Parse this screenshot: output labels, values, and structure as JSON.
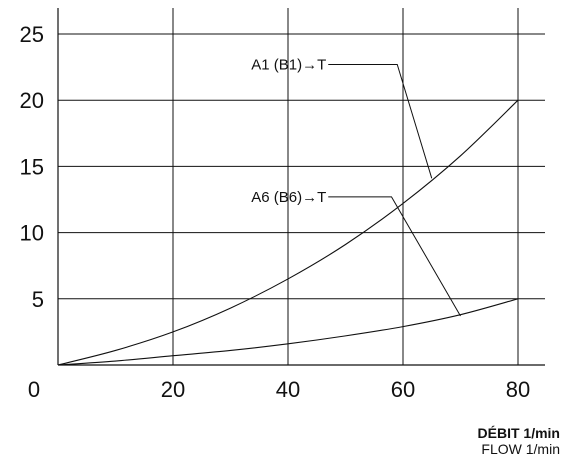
{
  "chart_data": {
    "type": "line",
    "title": "",
    "xlabel": "DÉBIT  1/min",
    "xlabel_secondary": "FLOW  1/min",
    "ylabel": "",
    "xlim": [
      0,
      85
    ],
    "ylim": [
      0,
      25
    ],
    "x_ticks": [
      0,
      20,
      40,
      60,
      80
    ],
    "y_ticks": [
      5,
      10,
      15,
      20,
      25
    ],
    "grid": true,
    "series": [
      {
        "name": "A1 (B1)→T",
        "x": [
          0,
          10,
          20,
          30,
          40,
          50,
          60,
          70,
          80
        ],
        "y": [
          0,
          1.1,
          2.5,
          4.3,
          6.5,
          9.1,
          12.2,
          15.8,
          20
        ]
      },
      {
        "name": "A6 (B6)→T",
        "x": [
          0,
          10,
          20,
          30,
          40,
          50,
          60,
          70,
          80
        ],
        "y": [
          0,
          0.3,
          0.7,
          1.1,
          1.6,
          2.2,
          2.9,
          3.8,
          5
        ]
      }
    ],
    "annotations": [
      {
        "text": "A1 (B1)→T",
        "series": "A1 (B1)→T",
        "leader_start": [
          47,
          22.7
        ],
        "leader_bend": [
          59,
          22.7
        ],
        "leader_end": [
          65,
          14.1
        ]
      },
      {
        "text": "A6 (B6)→T",
        "series": "A6 (B6)→T",
        "leader_start": [
          47,
          12.7
        ],
        "leader_bend": [
          58,
          12.7
        ],
        "leader_end": [
          70,
          3.7
        ]
      }
    ]
  }
}
